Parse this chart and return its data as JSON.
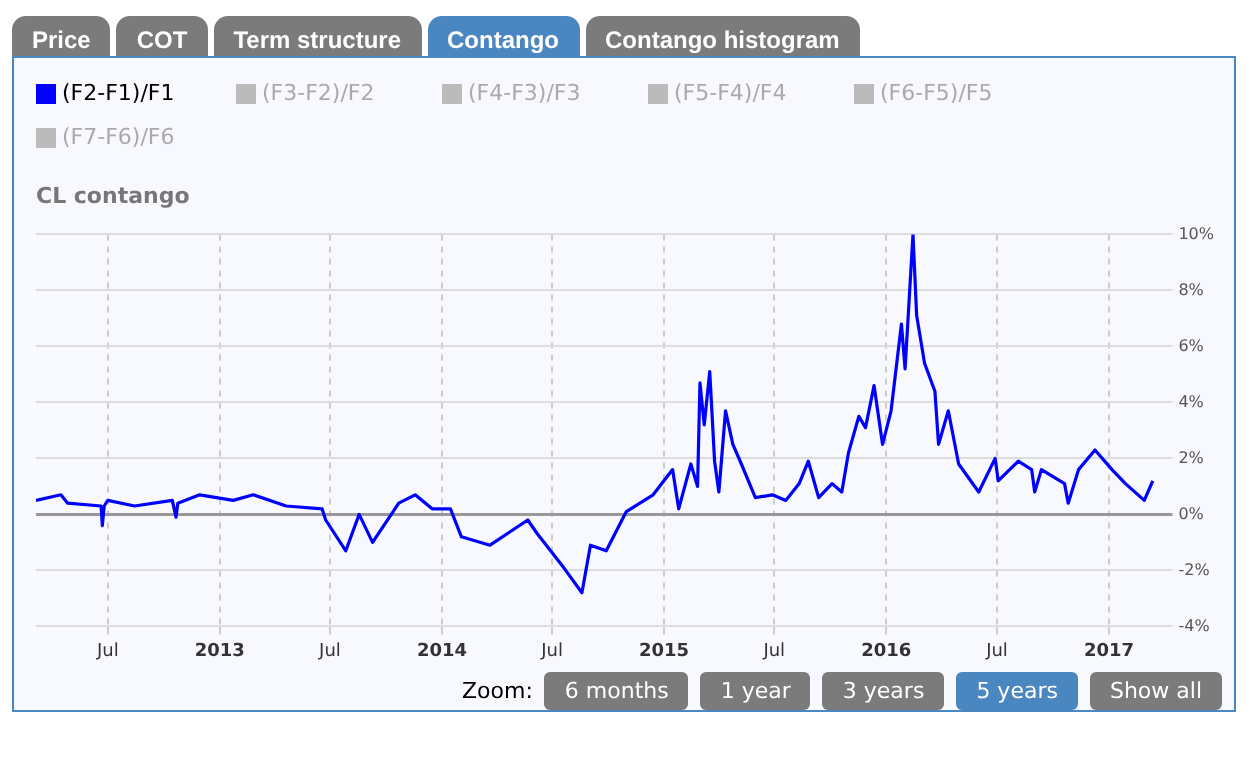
{
  "chart_data": {
    "type": "line",
    "title": "CL contango",
    "annotations": [
      "Price",
      "COT",
      "Term structure",
      "Contango",
      "Contango histogram",
      "(F3-F2)/F2",
      "(F4-F3)/F3",
      "(F5-F4)/F4",
      "(F6-F5)/F5",
      "(F7-F6)/F6",
      "Zoom:",
      "6 months",
      "1 year",
      "3 years",
      "5 years",
      "Show all"
    ],
    "series": [
      {
        "name": "(F2-F1)/F1",
        "color": "#0000ff",
        "x": [
          "2012-03-05",
          "2012-04-15",
          "2012-04-26",
          "2012-06-20",
          "2012-06-22",
          "2012-06-25",
          "2012-07-01",
          "2012-08-14",
          "2012-10-15",
          "2012-10-21",
          "2012-10-24",
          "2012-11-29",
          "2013-01-23",
          "2013-02-25",
          "2013-04-20",
          "2013-06-18",
          "2013-06-24",
          "2013-07-27",
          "2013-08-18",
          "2013-09-09",
          "2013-10-22",
          "2013-11-18",
          "2013-12-16",
          "2014-01-15",
          "2014-02-02",
          "2014-03-21",
          "2014-05-22",
          "2014-06-07",
          "2014-07-20",
          "2014-08-19",
          "2014-09-02",
          "2014-09-28",
          "2014-10-31",
          "2014-12-14",
          "2015-01-15",
          "2015-01-25",
          "2015-02-14",
          "2015-02-25",
          "2015-03-01",
          "2015-03-08",
          "2015-03-17",
          "2015-03-25",
          "2015-04-01",
          "2015-04-12",
          "2015-04-24",
          "2015-05-08",
          "2015-05-31",
          "2015-06-28",
          "2015-07-20",
          "2015-08-11",
          "2015-08-26",
          "2015-09-12",
          "2015-10-04",
          "2015-10-20",
          "2015-10-31",
          "2015-11-17",
          "2015-11-28",
          "2015-12-12",
          "2015-12-26",
          "2016-01-09",
          "2016-01-26",
          "2016-02-01",
          "2016-02-14",
          "2016-02-20",
          "2016-03-04",
          "2016-03-21",
          "2016-03-27",
          "2016-04-12",
          "2016-04-29",
          "2016-06-01",
          "2016-06-28",
          "2016-07-03",
          "2016-08-05",
          "2016-08-27",
          "2016-09-01",
          "2016-09-12",
          "2016-10-20",
          "2016-10-26",
          "2016-11-12",
          "2016-12-09",
          "2017-01-06",
          "2017-01-28",
          "2017-02-28",
          "2017-03-14"
        ],
        "values": [
          0.5,
          0.7,
          0.4,
          0.3,
          -0.4,
          0.3,
          0.5,
          0.3,
          0.5,
          -0.1,
          0.4,
          0.7,
          0.5,
          0.7,
          0.3,
          0.2,
          -0.2,
          -1.3,
          0,
          -1,
          0.4,
          0.7,
          0.2,
          0.2,
          -0.8,
          -1.1,
          -0.2,
          -0.7,
          -1.9,
          -2.8,
          -1.1,
          -1.3,
          0.1,
          0.7,
          1.6,
          0.2,
          1.8,
          1,
          4.7,
          3.2,
          5.1,
          1.9,
          0.8,
          3.7,
          2.5,
          1.8,
          0.6,
          0.7,
          0.5,
          1.1,
          1.9,
          0.6,
          1.1,
          0.8,
          2.2,
          3.5,
          3.1,
          4.6,
          2.5,
          3.7,
          6.8,
          5.2,
          10,
          7.1,
          5.4,
          4.4,
          2.5,
          3.7,
          1.8,
          0.8,
          2,
          1.2,
          1.9,
          1.6,
          0.8,
          1.6,
          1.1,
          0.4,
          1.6,
          2.3,
          1.6,
          1.1,
          0.5,
          1.2
        ]
      }
    ],
    "xlim": [
      "2012-03-05",
      "2017-03-20"
    ],
    "xticks": [
      {
        "value": "2012-07",
        "label": "Jul"
      },
      {
        "value": "2013",
        "label": "2013"
      },
      {
        "value": "2013-07",
        "label": "Jul"
      },
      {
        "value": "2014",
        "label": "2014"
      },
      {
        "value": "2014-07",
        "label": "Jul"
      },
      {
        "value": "2015",
        "label": "2015"
      },
      {
        "value": "2015-07",
        "label": "Jul"
      },
      {
        "value": "2016",
        "label": "2016"
      },
      {
        "value": "2016-07",
        "label": "Jul"
      },
      {
        "value": "2017",
        "label": "2017"
      }
    ],
    "ylim": [
      -4,
      10
    ],
    "yticks": [
      {
        "value": -4,
        "label": "-4%"
      },
      {
        "value": -2,
        "label": "-2%"
      },
      {
        "value": 0,
        "label": "0%"
      },
      {
        "value": 2,
        "label": "2%"
      },
      {
        "value": 4,
        "label": "4%"
      },
      {
        "value": 6,
        "label": "6%"
      },
      {
        "value": 8,
        "label": "8%"
      },
      {
        "value": 10,
        "label": "10%"
      }
    ],
    "grid": true,
    "legend": "top left",
    "marker": "none",
    "line_style": "solid"
  }
}
